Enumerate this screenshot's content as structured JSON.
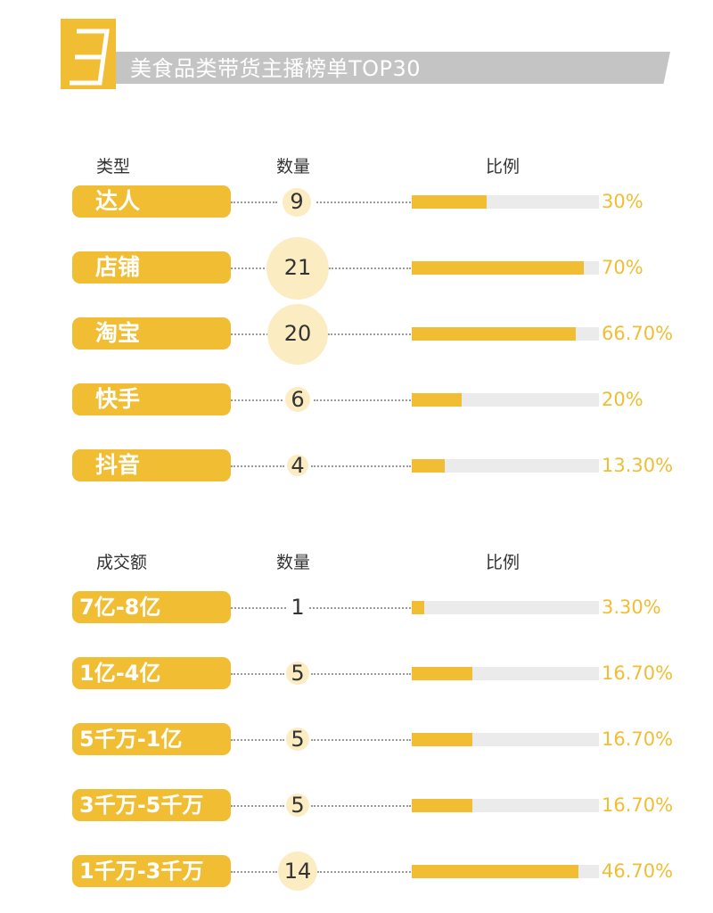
{
  "header": {
    "number": "3",
    "title": "美食品类带货主播榜单TOP30"
  },
  "colors": {
    "accent": "#f0bd33",
    "bubble": "#fbecc2",
    "track": "#ebebeb",
    "header_bar": "#c4c4c4"
  },
  "section1": {
    "col_type": "类型",
    "col_count": "数量",
    "col_ratio": "比例",
    "rows": [
      {
        "label": "达人",
        "count": "9",
        "ratio": 0.3,
        "ratio_text": "30%"
      },
      {
        "label": "店铺",
        "count": "21",
        "ratio": 0.7,
        "ratio_text": "70%"
      },
      {
        "label": "淘宝",
        "count": "20",
        "ratio": 0.667,
        "ratio_text": "66.70%"
      },
      {
        "label": "快手",
        "count": "6",
        "ratio": 0.2,
        "ratio_text": "20%"
      },
      {
        "label": "抖音",
        "count": "4",
        "ratio": 0.133,
        "ratio_text": "13.30%"
      }
    ]
  },
  "section2": {
    "col_type": "成交额",
    "col_count": "数量",
    "col_ratio": "比例",
    "rows": [
      {
        "label": "7亿-8亿",
        "count": "1",
        "ratio": 0.033,
        "ratio_text": "3.30%"
      },
      {
        "label": "1亿-4亿",
        "count": "5",
        "ratio": 0.167,
        "ratio_text": "16.70%"
      },
      {
        "label": "5千万-1亿",
        "count": "5",
        "ratio": 0.167,
        "ratio_text": "16.70%"
      },
      {
        "label": "3千万-5千万",
        "count": "5",
        "ratio": 0.167,
        "ratio_text": "16.70%"
      },
      {
        "label": "1千万-3千万",
        "count": "14",
        "ratio": 0.467,
        "ratio_text": "46.70%"
      }
    ]
  },
  "chart_data": [
    {
      "type": "bar",
      "categories": [
        "达人",
        "店铺",
        "淘宝",
        "快手",
        "抖音"
      ],
      "series": [
        {
          "name": "数量",
          "values": [
            9,
            21,
            20,
            6,
            4
          ]
        },
        {
          "name": "比例",
          "values": [
            30,
            70,
            66.7,
            20,
            13.3
          ]
        }
      ],
      "xlabel": "类型",
      "ylim": [
        0,
        100
      ]
    },
    {
      "type": "bar",
      "categories": [
        "7亿-8亿",
        "1亿-4亿",
        "5千万-1亿",
        "3千万-5千万",
        "1千万-3千万"
      ],
      "series": [
        {
          "name": "数量",
          "values": [
            1,
            5,
            5,
            5,
            14
          ]
        },
        {
          "name": "比例",
          "values": [
            3.3,
            16.7,
            16.7,
            16.7,
            46.7
          ]
        }
      ],
      "xlabel": "成交额",
      "ylim": [
        0,
        100
      ]
    }
  ]
}
